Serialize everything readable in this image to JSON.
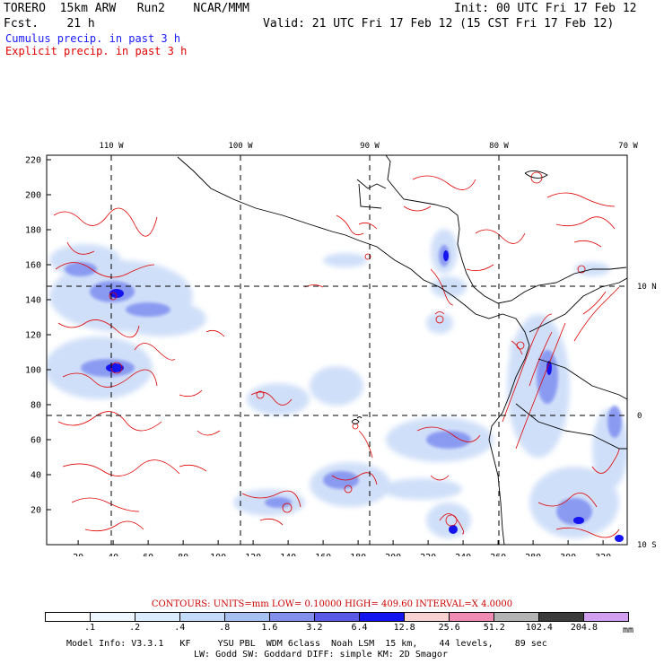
{
  "header": {
    "model": "TORERO  15km ARW   Run2    NCAR/MMM",
    "init": "Init: 00 UTC Fri 17 Feb 12",
    "fcst": "Fcst.    21 h",
    "valid": "Valid: 21 UTC Fri 17 Feb 12 (15 CST Fri 17 Feb 12)",
    "cumulus_label": "Cumulus precip. in past 3 h",
    "explicit_label": "Explicit precip. in past 3 h"
  },
  "colors": {
    "cumulus": "#1a1aff",
    "explicit": "#e00000",
    "coast": "#000000"
  },
  "map": {
    "lon_labels": [
      "110 W",
      "100 W",
      "90 W",
      "80 W",
      "70 W"
    ],
    "lat_labels": [
      "10 N",
      "0",
      "10 S"
    ],
    "x_ticks": [
      "20",
      "40",
      "60",
      "80",
      "100",
      "120",
      "140",
      "160",
      "180",
      "200",
      "220",
      "240",
      "260",
      "280",
      "300",
      "320"
    ],
    "y_ticks": [
      "20",
      "40",
      "60",
      "80",
      "100",
      "120",
      "140",
      "160",
      "180",
      "200",
      "220"
    ]
  },
  "contours_line": "CONTOURS:  UNITS=mm  LOW= 0.10000     HIGH=  409.60     INTERVAL=X  4.0000",
  "colorbar": {
    "labels": [
      ".1",
      ".2",
      ".4",
      ".8",
      "1.6",
      "3.2",
      "6.4",
      "12.8",
      "25.6",
      "51.2",
      "102.4",
      "204.8"
    ],
    "colors": [
      "#ffffff",
      "#eef6ff",
      "#dcecff",
      "#c4dcfa",
      "#a6c0f2",
      "#8290ec",
      "#5a5ae6",
      "#1414f0",
      "#fad2d2",
      "#f08cb4",
      "#b4b4b4",
      "#3c3c3c",
      "#d2a0f0"
    ],
    "unit": "mm"
  },
  "footer": {
    "line1": "Model Info: V3.3.1   KF     YSU PBL  WDM 6class  Noah LSM  15 km,    44 levels,    89 sec",
    "line2": "LW: Godd SW: Goddard DIFF: simple KM: 2D Smagor"
  }
}
